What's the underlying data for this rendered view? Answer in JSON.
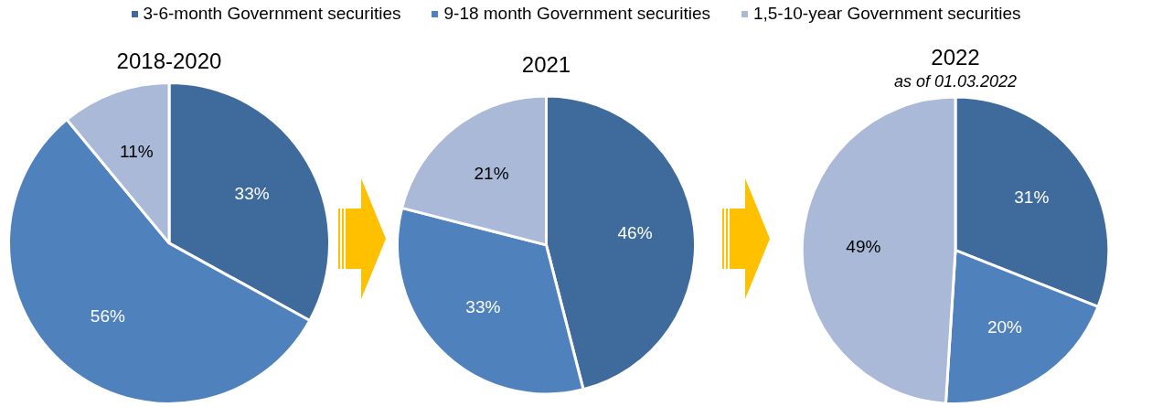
{
  "chart_data": [
    {
      "type": "pie",
      "title": "2018-2020",
      "categories": [
        "3-6-month Government securities",
        "9-18 month Government securities",
        "1,5-10-year Government securities"
      ],
      "values": [
        33,
        56,
        11
      ],
      "colors": [
        "#3f6a9c",
        "#4f81bd",
        "#a9b9d7"
      ],
      "value_labels": [
        "33%",
        "56%",
        "11%"
      ],
      "legend": "top"
    },
    {
      "type": "pie",
      "title": "2021",
      "categories": [
        null,
        null,
        null
      ],
      "values": [
        46,
        33,
        21
      ],
      "colors": [
        "#3f6a9c",
        "#4f81bd",
        "#a9b9d7"
      ],
      "value_labels": [
        "46%",
        "33%",
        "21%"
      ]
    },
    {
      "type": "pie",
      "title": "2022",
      "subtitle": "as of 01.03.2022",
      "categories": [
        null,
        null,
        null
      ],
      "values": [
        31,
        20,
        49
      ],
      "colors": [
        "#3f6a9c",
        "#4f81bd",
        "#a9b9d7"
      ],
      "value_labels": [
        "31%",
        "20%",
        "49%"
      ]
    }
  ]
}
